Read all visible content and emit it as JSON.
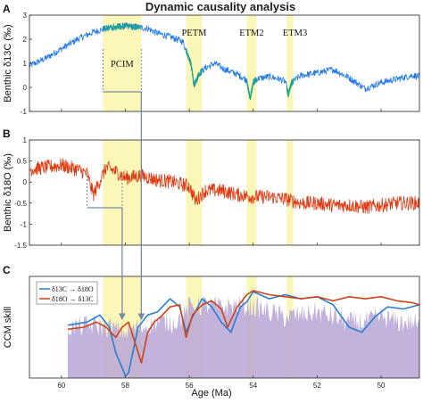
{
  "chart_data": {
    "title": "Dynamic causality analysis",
    "xlabel": "Age (Ma)",
    "x_reversed": true,
    "xlim": [
      61,
      48.8
    ],
    "xticks": [
      60,
      58,
      56,
      54,
      52,
      50
    ],
    "events": [
      {
        "label": "PCIM",
        "start": 58.7,
        "end": 57.5,
        "color": "#fbf6b0"
      },
      {
        "label": "PETM",
        "start": 56.1,
        "end": 55.6,
        "color": "#fbf6b0"
      },
      {
        "label": "ETM2",
        "start": 54.2,
        "end": 53.9,
        "color": "#fbf6b0"
      },
      {
        "label": "ETM3",
        "start": 52.95,
        "end": 52.75,
        "color": "#fbf6b0"
      }
    ],
    "panels": [
      {
        "label": "A",
        "type": "line",
        "ylabel": "Benthic δ13C (‰)",
        "ylim": [
          -1,
          3
        ],
        "yticks": [
          -1,
          0,
          1,
          2,
          3
        ],
        "series": [
          {
            "color": "#1f77e8",
            "highlight_color": "#1aa58c",
            "x": [
              61,
              60.5,
              60,
              59.5,
              59,
              58.6,
              58.3,
              58.0,
              57.6,
              57.3,
              57.0,
              56.6,
              56.2,
              55.95,
              55.85,
              55.7,
              55.5,
              55.2,
              54.9,
              54.5,
              54.2,
              54.1,
              54.0,
              53.9,
              53.5,
              53.2,
              53.0,
              52.9,
              52.8,
              52.5,
              52.0,
              51.5,
              51.0,
              50.5,
              50.0,
              49.5,
              49.0,
              48.8
            ],
            "y": [
              0.9,
              1.2,
              1.6,
              2.0,
              2.3,
              2.45,
              2.5,
              2.55,
              2.5,
              2.45,
              2.25,
              2.1,
              1.9,
              1.0,
              0.1,
              0.55,
              0.8,
              1.0,
              0.75,
              0.55,
              0.3,
              -0.5,
              0.2,
              0.35,
              0.45,
              0.35,
              0.25,
              -0.3,
              0.2,
              0.5,
              0.6,
              0.75,
              0.4,
              -0.05,
              0.2,
              0.35,
              0.5,
              0.45
            ],
            "noise": 0.14
          }
        ]
      },
      {
        "label": "B",
        "type": "line",
        "ylabel": "Benthic δ18O (‰)",
        "ylim": [
          -1.5,
          1
        ],
        "yticks": [
          -1.5,
          -1,
          -0.5,
          0,
          0.5,
          1
        ],
        "series": [
          {
            "color": "#e03a12",
            "x": [
              61,
              60.5,
              60,
              59.5,
              59.2,
              59.0,
              58.6,
              58.3,
              58.0,
              57.5,
              57.0,
              56.5,
              56.0,
              55.8,
              55.5,
              55.0,
              54.5,
              54.0,
              53.5,
              53.0,
              52.5,
              52.0,
              51.5,
              51.0,
              50.5,
              50.0,
              49.5,
              49.0,
              48.8
            ],
            "y": [
              0.3,
              0.35,
              0.4,
              0.3,
              0.2,
              -0.3,
              0.35,
              0.25,
              0.1,
              0.15,
              0.05,
              0.0,
              -0.1,
              -0.45,
              -0.2,
              -0.2,
              -0.3,
              -0.35,
              -0.35,
              -0.4,
              -0.5,
              -0.5,
              -0.55,
              -0.55,
              -0.6,
              -0.55,
              -0.5,
              -0.5,
              -0.5
            ],
            "noise": 0.17
          }
        ]
      },
      {
        "label": "C",
        "type": "line",
        "ylabel": "CCM skill",
        "ylim": [
          0,
          1
        ],
        "legend_position": "top-left",
        "area": {
          "color": "#b9a6d6",
          "x": [
            59.8,
            59.0,
            58.5,
            58.0,
            57.5,
            57.0,
            56.5,
            56.2,
            56.0,
            55.5,
            55.0,
            54.5,
            54.0,
            53.5,
            53.0,
            52.5,
            52.0,
            51.5,
            51.0,
            50.5,
            50.0,
            49.5,
            49.0,
            48.8
          ],
          "y": [
            0.5,
            0.52,
            0.5,
            0.45,
            0.5,
            0.55,
            0.55,
            0.6,
            0.7,
            0.72,
            0.7,
            0.72,
            0.7,
            0.65,
            0.6,
            0.62,
            0.65,
            0.6,
            0.55,
            0.55,
            0.6,
            0.55,
            0.55,
            0.5
          ]
        },
        "series": [
          {
            "name": "δ13C → δ18O",
            "color": "#2a7fd4",
            "x": [
              59.8,
              59.2,
              58.8,
              58.5,
              58.3,
              58.1,
              58.0,
              57.9,
              57.8,
              57.6,
              57.3,
              57.0,
              56.6,
              56.3,
              56.1,
              55.9,
              55.6,
              55.3,
              55.0,
              54.7,
              54.4,
              54.2,
              54.0,
              53.5,
              53.0,
              52.5,
              52.0,
              51.5,
              51.0,
              50.6,
              50.2,
              49.8,
              49.3,
              48.8
            ],
            "y": [
              0.52,
              0.55,
              0.62,
              0.5,
              0.25,
              0.1,
              0.02,
              0.05,
              0.2,
              0.5,
              0.62,
              0.65,
              0.78,
              0.7,
              0.45,
              0.6,
              0.78,
              0.7,
              0.55,
              0.45,
              0.7,
              0.75,
              0.85,
              0.78,
              0.82,
              0.78,
              0.8,
              0.72,
              0.5,
              0.45,
              0.6,
              0.7,
              0.68,
              0.72
            ]
          },
          {
            "name": "δ18O → δ13C",
            "color": "#cc4418",
            "x": [
              59.8,
              59.3,
              58.9,
              58.6,
              58.3,
              58.1,
              57.9,
              57.7,
              57.5,
              57.3,
              57.1,
              56.9,
              56.6,
              56.3,
              56.1,
              55.9,
              55.6,
              55.3,
              55.0,
              54.8,
              54.5,
              54.2,
              54.0,
              53.5,
              53.0,
              52.5,
              52.0,
              51.5,
              51.0,
              50.5,
              50.0,
              49.5,
              49.0,
              48.8
            ],
            "y": [
              0.48,
              0.5,
              0.55,
              0.5,
              0.4,
              0.5,
              0.55,
              0.35,
              0.15,
              0.45,
              0.55,
              0.6,
              0.7,
              0.72,
              0.4,
              0.62,
              0.72,
              0.76,
              0.68,
              0.5,
              0.7,
              0.82,
              0.86,
              0.82,
              0.8,
              0.78,
              0.8,
              0.76,
              0.8,
              0.78,
              0.8,
              0.76,
              0.74,
              0.72
            ]
          }
        ]
      }
    ],
    "arrows": [
      {
        "from_panel": "A",
        "to_panel": "C",
        "start_x": 58.7,
        "turn_x": 57.5,
        "color": "#7a8aa0"
      },
      {
        "from_panel": "B",
        "to_panel": "C",
        "start_x": 59.2,
        "turn_x": 58.1,
        "color": "#7a8aa0"
      }
    ]
  }
}
